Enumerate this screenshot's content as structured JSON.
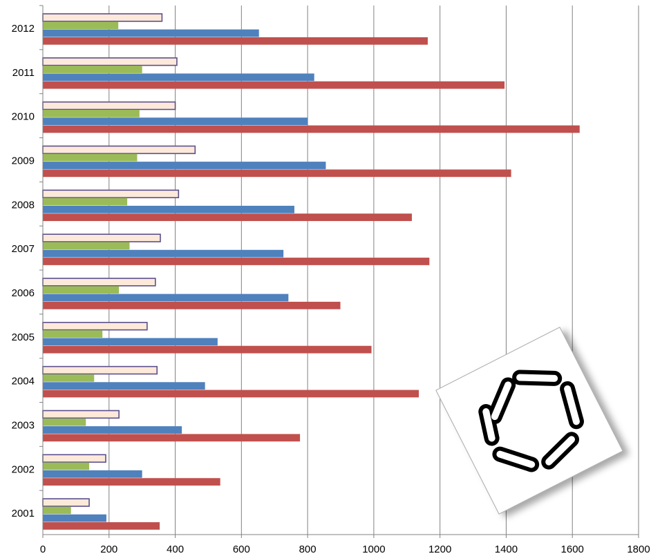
{
  "chart_data": {
    "type": "bar",
    "orientation": "horizontal",
    "categories": [
      "2001",
      "2002",
      "2003",
      "2004",
      "2005",
      "2006",
      "2007",
      "2008",
      "2009",
      "2010",
      "2011",
      "2012"
    ],
    "series": [
      {
        "values": [
          140,
          190,
          230,
          345,
          315,
          340,
          355,
          410,
          460,
          400,
          405,
          360
        ],
        "color": "#fde9d9",
        "border": "#5a4f8c"
      },
      {
        "values": [
          85,
          140,
          130,
          155,
          180,
          230,
          262,
          255,
          285,
          292,
          300,
          228
        ],
        "color": "#9bbb59"
      },
      {
        "values": [
          192,
          300,
          420,
          490,
          528,
          742,
          727,
          760,
          855,
          800,
          820,
          653
        ],
        "color": "#4f81bd"
      },
      {
        "values": [
          353,
          536,
          777,
          1136,
          993,
          899,
          1168,
          1115,
          1415,
          1622,
          1395,
          1163
        ],
        "color": "#c0504d"
      }
    ],
    "xlim": [
      0,
      1800
    ],
    "xticks": [
      "0",
      "200",
      "400",
      "600",
      "800",
      "1000",
      "1200",
      "1400",
      "1600",
      "1800"
    ],
    "grid": true,
    "grid_color": "#808080"
  },
  "logo": {
    "icon": "rotating-capsules-logo-icon"
  }
}
